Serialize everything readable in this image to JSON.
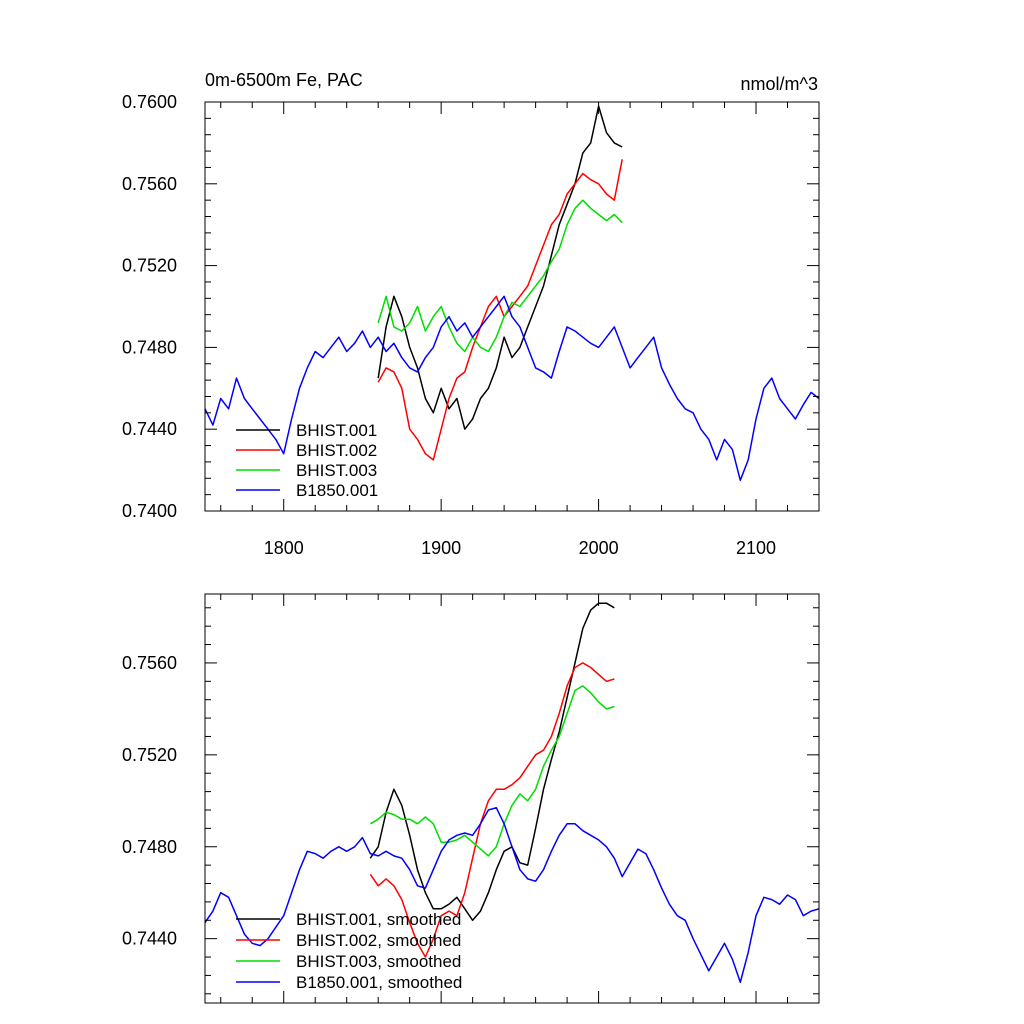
{
  "chart_data": [
    {
      "type": "line",
      "title": "0m-6500m Fe, PAC",
      "units_label": "nmol/m^3",
      "xlim": [
        1750,
        2140
      ],
      "ylim": [
        0.74,
        0.76
      ],
      "x_ticks": [
        1800,
        1900,
        2000,
        2100
      ],
      "x_tick_labels": [
        "1800",
        "1900",
        "2000",
        "2100"
      ],
      "y_ticks": [
        0.74,
        0.744,
        0.748,
        0.752,
        0.756,
        0.76
      ],
      "y_tick_labels": [
        "0.7400",
        "0.7440",
        "0.7480",
        "0.7520",
        "0.7560",
        "0.7600"
      ],
      "legend_position": "bottom-left",
      "series": [
        {
          "name": "BHIST.001",
          "color": "#000000",
          "x": [
            1860,
            1865,
            1870,
            1875,
            1880,
            1885,
            1890,
            1895,
            1900,
            1905,
            1910,
            1915,
            1920,
            1925,
            1930,
            1935,
            1940,
            1945,
            1950,
            1955,
            1960,
            1965,
            1970,
            1975,
            1980,
            1985,
            1990,
            1995,
            2000,
            2005,
            2010,
            2015
          ],
          "y": [
            0.7465,
            0.749,
            0.7505,
            0.7495,
            0.748,
            0.747,
            0.7455,
            0.7448,
            0.746,
            0.745,
            0.7455,
            0.744,
            0.7445,
            0.7455,
            0.746,
            0.747,
            0.7485,
            0.7475,
            0.748,
            0.749,
            0.75,
            0.751,
            0.7525,
            0.754,
            0.755,
            0.756,
            0.7575,
            0.758,
            0.7598,
            0.7585,
            0.758,
            0.7578
          ]
        },
        {
          "name": "BHIST.002",
          "color": "#ff0000",
          "x": [
            1860,
            1865,
            1870,
            1875,
            1880,
            1885,
            1890,
            1895,
            1900,
            1905,
            1910,
            1915,
            1920,
            1925,
            1930,
            1935,
            1940,
            1945,
            1950,
            1955,
            1960,
            1965,
            1970,
            1975,
            1980,
            1985,
            1990,
            1995,
            2000,
            2005,
            2010,
            2015
          ],
          "y": [
            0.7463,
            0.747,
            0.7468,
            0.746,
            0.744,
            0.7435,
            0.7428,
            0.7425,
            0.744,
            0.7455,
            0.7465,
            0.7468,
            0.748,
            0.749,
            0.75,
            0.7505,
            0.7495,
            0.75,
            0.7505,
            0.751,
            0.752,
            0.753,
            0.754,
            0.7545,
            0.7555,
            0.756,
            0.7565,
            0.7562,
            0.756,
            0.7555,
            0.7552,
            0.7572
          ]
        },
        {
          "name": "BHIST.003",
          "color": "#00dd00",
          "x": [
            1860,
            1865,
            1870,
            1875,
            1880,
            1885,
            1890,
            1895,
            1900,
            1905,
            1910,
            1915,
            1920,
            1925,
            1930,
            1935,
            1940,
            1945,
            1950,
            1955,
            1960,
            1965,
            1970,
            1975,
            1980,
            1985,
            1990,
            1995,
            2000,
            2005,
            2010,
            2015
          ],
          "y": [
            0.7492,
            0.7505,
            0.749,
            0.7488,
            0.7492,
            0.75,
            0.7488,
            0.7495,
            0.75,
            0.749,
            0.7482,
            0.7478,
            0.7485,
            0.748,
            0.7478,
            0.7485,
            0.7495,
            0.7502,
            0.75,
            0.7505,
            0.751,
            0.7515,
            0.7522,
            0.7528,
            0.754,
            0.7548,
            0.7552,
            0.7548,
            0.7545,
            0.7542,
            0.7545,
            0.7541
          ]
        },
        {
          "name": "B1850.001",
          "color": "#0000ff",
          "x": [
            1750,
            1755,
            1760,
            1765,
            1770,
            1775,
            1780,
            1785,
            1790,
            1795,
            1800,
            1805,
            1810,
            1815,
            1820,
            1825,
            1830,
            1835,
            1840,
            1845,
            1850,
            1855,
            1860,
            1865,
            1870,
            1875,
            1880,
            1885,
            1890,
            1895,
            1900,
            1905,
            1910,
            1915,
            1920,
            1925,
            1930,
            1935,
            1940,
            1945,
            1950,
            1955,
            1960,
            1965,
            1970,
            1975,
            1980,
            1985,
            1990,
            1995,
            2000,
            2005,
            2010,
            2015,
            2020,
            2025,
            2030,
            2035,
            2040,
            2045,
            2050,
            2055,
            2060,
            2065,
            2070,
            2075,
            2080,
            2085,
            2090,
            2095,
            2100,
            2105,
            2110,
            2115,
            2120,
            2125,
            2130,
            2135,
            2140
          ],
          "y": [
            0.745,
            0.7442,
            0.7455,
            0.745,
            0.7465,
            0.7455,
            0.745,
            0.7445,
            0.744,
            0.7435,
            0.7428,
            0.7445,
            0.746,
            0.747,
            0.7478,
            0.7475,
            0.748,
            0.7485,
            0.7478,
            0.7482,
            0.7488,
            0.748,
            0.7485,
            0.7478,
            0.7482,
            0.7475,
            0.747,
            0.7468,
            0.7475,
            0.748,
            0.749,
            0.7495,
            0.7488,
            0.7492,
            0.7485,
            0.749,
            0.7495,
            0.75,
            0.7505,
            0.7495,
            0.749,
            0.748,
            0.747,
            0.7468,
            0.7465,
            0.7478,
            0.749,
            0.7488,
            0.7485,
            0.7482,
            0.748,
            0.7485,
            0.749,
            0.748,
            0.747,
            0.7475,
            0.748,
            0.7485,
            0.747,
            0.7462,
            0.7455,
            0.745,
            0.7448,
            0.744,
            0.7435,
            0.7425,
            0.7435,
            0.743,
            0.7415,
            0.7425,
            0.7445,
            0.746,
            0.7465,
            0.7455,
            0.745,
            0.7445,
            0.7452,
            0.7458,
            0.7455
          ]
        }
      ]
    },
    {
      "type": "line",
      "xlim": [
        1750,
        2140
      ],
      "ylim": [
        0.7412,
        0.759
      ],
      "x_ticks": [
        1800,
        1900,
        2000,
        2100
      ],
      "y_ticks": [
        0.744,
        0.748,
        0.752,
        0.756
      ],
      "y_tick_labels": [
        "0.7440",
        "0.7480",
        "0.7520",
        "0.7560"
      ],
      "legend_position": "bottom-left",
      "series": [
        {
          "name": "BHIST.001, smoothed",
          "color": "#000000",
          "x": [
            1855,
            1860,
            1865,
            1870,
            1875,
            1880,
            1885,
            1890,
            1895,
            1900,
            1905,
            1910,
            1915,
            1920,
            1925,
            1930,
            1935,
            1940,
            1945,
            1950,
            1955,
            1960,
            1965,
            1970,
            1975,
            1980,
            1985,
            1990,
            1995,
            2000,
            2005,
            2010
          ],
          "y": [
            0.7475,
            0.748,
            0.7495,
            0.7505,
            0.7498,
            0.7485,
            0.747,
            0.746,
            0.7453,
            0.7453,
            0.7455,
            0.7458,
            0.7453,
            0.7448,
            0.7452,
            0.746,
            0.747,
            0.7478,
            0.748,
            0.7473,
            0.7472,
            0.7488,
            0.7505,
            0.7518,
            0.753,
            0.7545,
            0.756,
            0.7575,
            0.7583,
            0.7586,
            0.7586,
            0.7584
          ]
        },
        {
          "name": "BHIST.002, smoothed",
          "color": "#ff0000",
          "x": [
            1855,
            1860,
            1865,
            1870,
            1875,
            1880,
            1885,
            1890,
            1895,
            1900,
            1905,
            1910,
            1915,
            1920,
            1925,
            1930,
            1935,
            1940,
            1945,
            1950,
            1955,
            1960,
            1965,
            1970,
            1975,
            1980,
            1985,
            1990,
            1995,
            2000,
            2005,
            2010
          ],
          "y": [
            0.7468,
            0.7463,
            0.7466,
            0.7463,
            0.7457,
            0.7447,
            0.7438,
            0.7432,
            0.744,
            0.745,
            0.7452,
            0.745,
            0.746,
            0.7475,
            0.749,
            0.75,
            0.7505,
            0.7505,
            0.7507,
            0.751,
            0.7515,
            0.752,
            0.7522,
            0.7528,
            0.7538,
            0.755,
            0.7558,
            0.756,
            0.7558,
            0.7555,
            0.7552,
            0.7553
          ]
        },
        {
          "name": "BHIST.003, smoothed",
          "color": "#00dd00",
          "x": [
            1855,
            1860,
            1865,
            1870,
            1875,
            1880,
            1885,
            1890,
            1895,
            1900,
            1905,
            1910,
            1915,
            1920,
            1925,
            1930,
            1935,
            1940,
            1945,
            1950,
            1955,
            1960,
            1965,
            1970,
            1975,
            1980,
            1985,
            1990,
            1995,
            2000,
            2005,
            2010
          ],
          "y": [
            0.749,
            0.7492,
            0.7495,
            0.7494,
            0.7492,
            0.7492,
            0.749,
            0.7493,
            0.749,
            0.7482,
            0.7482,
            0.7483,
            0.7485,
            0.7482,
            0.7479,
            0.7476,
            0.748,
            0.749,
            0.7498,
            0.7503,
            0.75,
            0.7505,
            0.7515,
            0.7522,
            0.7528,
            0.7538,
            0.7548,
            0.755,
            0.7547,
            0.7543,
            0.754,
            0.7541
          ]
        },
        {
          "name": "B1850.001, smoothed",
          "color": "#0000ff",
          "x": [
            1750,
            1755,
            1760,
            1765,
            1770,
            1775,
            1780,
            1785,
            1790,
            1795,
            1800,
            1805,
            1810,
            1815,
            1820,
            1825,
            1830,
            1835,
            1840,
            1845,
            1850,
            1855,
            1860,
            1865,
            1870,
            1875,
            1880,
            1885,
            1890,
            1895,
            1900,
            1905,
            1910,
            1915,
            1920,
            1925,
            1930,
            1935,
            1940,
            1945,
            1950,
            1955,
            1960,
            1965,
            1970,
            1975,
            1980,
            1985,
            1990,
            1995,
            2000,
            2005,
            2010,
            2015,
            2020,
            2025,
            2030,
            2035,
            2040,
            2045,
            2050,
            2055,
            2060,
            2065,
            2070,
            2075,
            2080,
            2085,
            2090,
            2095,
            2100,
            2105,
            2110,
            2115,
            2120,
            2125,
            2130,
            2135,
            2140
          ],
          "y": [
            0.7447,
            0.7452,
            0.746,
            0.7458,
            0.745,
            0.7442,
            0.7438,
            0.7437,
            0.744,
            0.7445,
            0.745,
            0.746,
            0.747,
            0.7478,
            0.7477,
            0.7475,
            0.7478,
            0.748,
            0.7478,
            0.748,
            0.7484,
            0.7477,
            0.7476,
            0.7478,
            0.7476,
            0.7475,
            0.747,
            0.7463,
            0.7462,
            0.747,
            0.7478,
            0.7483,
            0.7485,
            0.7486,
            0.7485,
            0.749,
            0.7496,
            0.7497,
            0.749,
            0.748,
            0.747,
            0.7466,
            0.7465,
            0.747,
            0.7478,
            0.7485,
            0.749,
            0.749,
            0.7487,
            0.7485,
            0.7483,
            0.748,
            0.7475,
            0.7467,
            0.7473,
            0.7479,
            0.7477,
            0.747,
            0.7462,
            0.7455,
            0.745,
            0.7448,
            0.744,
            0.7433,
            0.7426,
            0.7432,
            0.7438,
            0.7431,
            0.7421,
            0.7434,
            0.745,
            0.7458,
            0.7457,
            0.7455,
            0.7459,
            0.7457,
            0.745,
            0.7452,
            0.7453
          ]
        }
      ]
    }
  ]
}
